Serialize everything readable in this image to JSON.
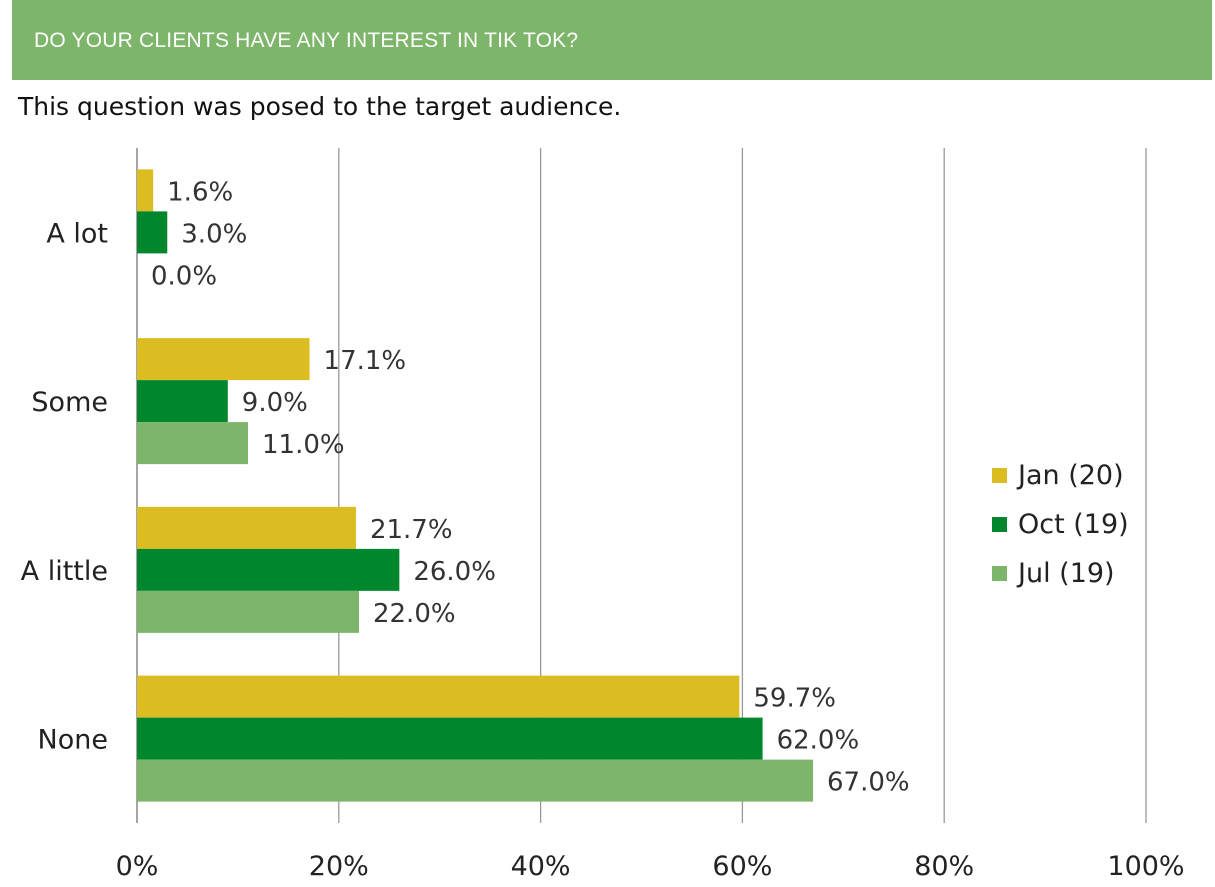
{
  "header": {
    "title": "DO YOUR CLIENTS HAVE ANY INTEREST IN TIK TOK?",
    "subtitle": "This question was posed to the target audience."
  },
  "colors": {
    "header_bg": "#7db56a",
    "jan20": "#dbbd21",
    "oct19": "#00872e",
    "jul19": "#7db56a",
    "gridline": "#999999",
    "axis": "#888888"
  },
  "chart_data": {
    "type": "bar",
    "orientation": "horizontal",
    "categories": [
      "A lot",
      "Some",
      "A little",
      "None"
    ],
    "series": [
      {
        "name": "Jan (20)",
        "color": "#dbbd21",
        "values": [
          1.6,
          17.1,
          21.7,
          59.7
        ],
        "labels": [
          "1.6%",
          "17.1%",
          "21.7%",
          "59.7%"
        ]
      },
      {
        "name": "Oct (19)",
        "color": "#00872e",
        "values": [
          3.0,
          9.0,
          26.0,
          62.0
        ],
        "labels": [
          "3.0%",
          "9.0%",
          "26.0%",
          "62.0%"
        ]
      },
      {
        "name": "Jul (19)",
        "color": "#7db56a",
        "values": [
          0.0,
          11.0,
          22.0,
          67.0
        ],
        "labels": [
          "0.0%",
          "11.0%",
          "22.0%",
          "67.0%"
        ]
      }
    ],
    "xlim": [
      0,
      100
    ],
    "xticks": [
      "0%",
      "20%",
      "40%",
      "60%",
      "80%",
      "100%"
    ],
    "grid": true,
    "legend_position": "right"
  }
}
